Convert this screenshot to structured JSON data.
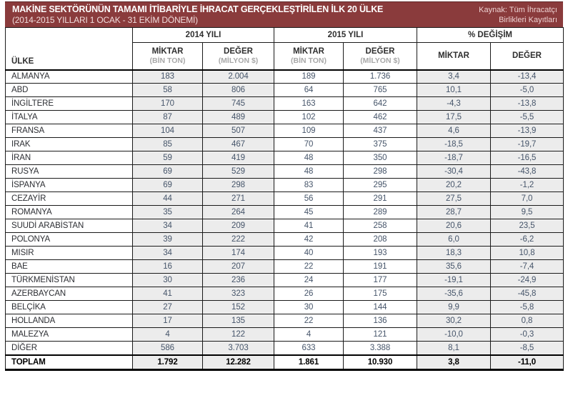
{
  "title_bar": {
    "title": "MAKİNE SEKTÖRÜNÜN TAMAMI İTİBARİYLE İHRACAT GERÇEKLEŞTİRİLEN İLK 20 ÜLKE",
    "subtitle": "(2014-2015 YILLARI 1 OCAK - 31 EKİM DÖNEMİ)",
    "source_line1": "Kaynak: Tüm İhracatçı",
    "source_line2": "Birlikleri Kayıtları",
    "bg_color": "#8a3b3c",
    "text_color": "#ffffff"
  },
  "table": {
    "country_header": "ÜLKE",
    "col_groups": [
      "2014 YILI",
      "2015 YILI",
      "% DEĞİŞİM"
    ],
    "sub_headers": [
      {
        "label": "MİKTAR",
        "unit": "(BİN TON)"
      },
      {
        "label": "DEĞER",
        "unit": "(MİLYON $)"
      },
      {
        "label": "MİKTAR",
        "unit": "(BİN TON)"
      },
      {
        "label": "DEĞER",
        "unit": "(MİLYON $)"
      },
      {
        "label": "MİKTAR",
        "unit": ""
      },
      {
        "label": "DEĞER",
        "unit": ""
      }
    ],
    "shade_color": "#ececec",
    "rows": [
      {
        "country": "ALMANYA",
        "cells": [
          "183",
          "2.004",
          "189",
          "1.736",
          "3,4",
          "-13,4"
        ]
      },
      {
        "country": "ABD",
        "cells": [
          "58",
          "806",
          "64",
          "765",
          "10,1",
          "-5,0"
        ]
      },
      {
        "country": "İNGİLTERE",
        "cells": [
          "170",
          "745",
          "163",
          "642",
          "-4,3",
          "-13,8"
        ]
      },
      {
        "country": "İTALYA",
        "cells": [
          "87",
          "489",
          "102",
          "462",
          "17,5",
          "-5,5"
        ]
      },
      {
        "country": "FRANSA",
        "cells": [
          "104",
          "507",
          "109",
          "437",
          "4,6",
          "-13,9"
        ]
      },
      {
        "country": "IRAK",
        "cells": [
          "85",
          "467",
          "70",
          "375",
          "-18,5",
          "-19,7"
        ]
      },
      {
        "country": "İRAN",
        "cells": [
          "59",
          "419",
          "48",
          "350",
          "-18,7",
          "-16,5"
        ]
      },
      {
        "country": "RUSYA",
        "cells": [
          "69",
          "529",
          "48",
          "298",
          "-30,4",
          "-43,8"
        ]
      },
      {
        "country": "İSPANYA",
        "cells": [
          "69",
          "298",
          "83",
          "295",
          "20,2",
          "-1,2"
        ]
      },
      {
        "country": "CEZAYİR",
        "cells": [
          "44",
          "271",
          "56",
          "291",
          "27,5",
          "7,0"
        ]
      },
      {
        "country": "ROMANYA",
        "cells": [
          "35",
          "264",
          "45",
          "289",
          "28,7",
          "9,5"
        ]
      },
      {
        "country": "SUUDİ ARABİSTAN",
        "cells": [
          "34",
          "209",
          "41",
          "258",
          "20,6",
          "23,5"
        ]
      },
      {
        "country": "POLONYA",
        "cells": [
          "39",
          "222",
          "42",
          "208",
          "6,0",
          "-6,2"
        ]
      },
      {
        "country": "MISIR",
        "cells": [
          "34",
          "174",
          "40",
          "193",
          "18,3",
          "10,8"
        ]
      },
      {
        "country": "BAE",
        "cells": [
          "16",
          "207",
          "22",
          "191",
          "35,6",
          "-7,4"
        ]
      },
      {
        "country": "TÜRKMENİSTAN",
        "cells": [
          "30",
          "236",
          "24",
          "177",
          "-19,1",
          "-24,9"
        ]
      },
      {
        "country": "AZERBAYCAN",
        "cells": [
          "41",
          "323",
          "26",
          "175",
          "-35,6",
          "-45,8"
        ]
      },
      {
        "country": "BELÇİKA",
        "cells": [
          "27",
          "152",
          "30",
          "144",
          "9,9",
          "-5,8"
        ]
      },
      {
        "country": "HOLLANDA",
        "cells": [
          "17",
          "135",
          "22",
          "136",
          "30,2",
          "0,8"
        ]
      },
      {
        "country": "MALEZYA",
        "cells": [
          "4",
          "122",
          "4",
          "121",
          "-10,0",
          "-0,3"
        ]
      },
      {
        "country": "DİĞER",
        "cells": [
          "586",
          "3.703",
          "633",
          "3.388",
          "8,1",
          "-8,5"
        ]
      },
      {
        "country": "TOPLAM",
        "cells": [
          "1.792",
          "12.282",
          "1.861",
          "10.930",
          "3,8",
          "-11,0"
        ],
        "total": true
      }
    ]
  },
  "chart_data": {
    "type": "table",
    "title": "MAKİNE SEKTÖRÜNÜN TAMAMI İTİBARİYLE İHRACAT GERÇEKLEŞTİRİLEN İLK 20 ÜLKE (2014-2015 YILLARI 1 OCAK - 31 EKİM DÖNEMİ)",
    "source": "Kaynak: Tüm İhracatçı Birlikleri Kayıtları",
    "columns": [
      "ÜLKE",
      "2014 YILI MİKTAR (BİN TON)",
      "2014 YILI DEĞER (MİLYON $)",
      "2015 YILI MİKTAR (BİN TON)",
      "2015 YILI DEĞER (MİLYON $)",
      "% DEĞİŞİM MİKTAR",
      "% DEĞİŞİM DEĞER"
    ],
    "rows": [
      [
        "ALMANYA",
        183,
        2004,
        189,
        1736,
        3.4,
        -13.4
      ],
      [
        "ABD",
        58,
        806,
        64,
        765,
        10.1,
        -5.0
      ],
      [
        "İNGİLTERE",
        170,
        745,
        163,
        642,
        -4.3,
        -13.8
      ],
      [
        "İTALYA",
        87,
        489,
        102,
        462,
        17.5,
        -5.5
      ],
      [
        "FRANSA",
        104,
        507,
        109,
        437,
        4.6,
        -13.9
      ],
      [
        "IRAK",
        85,
        467,
        70,
        375,
        -18.5,
        -19.7
      ],
      [
        "İRAN",
        59,
        419,
        48,
        350,
        -18.7,
        -16.5
      ],
      [
        "RUSYA",
        69,
        529,
        48,
        298,
        -30.4,
        -43.8
      ],
      [
        "İSPANYA",
        69,
        298,
        83,
        295,
        20.2,
        -1.2
      ],
      [
        "CEZAYİR",
        44,
        271,
        56,
        291,
        27.5,
        7.0
      ],
      [
        "ROMANYA",
        35,
        264,
        45,
        289,
        28.7,
        9.5
      ],
      [
        "SUUDİ ARABİSTAN",
        34,
        209,
        41,
        258,
        20.6,
        23.5
      ],
      [
        "POLONYA",
        39,
        222,
        42,
        208,
        6.0,
        -6.2
      ],
      [
        "MISIR",
        34,
        174,
        40,
        193,
        18.3,
        10.8
      ],
      [
        "BAE",
        16,
        207,
        22,
        191,
        35.6,
        -7.4
      ],
      [
        "TÜRKMENİSTAN",
        30,
        236,
        24,
        177,
        -19.1,
        -24.9
      ],
      [
        "AZERBAYCAN",
        41,
        323,
        26,
        175,
        -35.6,
        -45.8
      ],
      [
        "BELÇİKA",
        27,
        152,
        30,
        144,
        9.9,
        -5.8
      ],
      [
        "HOLLANDA",
        17,
        135,
        22,
        136,
        30.2,
        0.8
      ],
      [
        "MALEZYA",
        4,
        122,
        4,
        121,
        -10.0,
        -0.3
      ],
      [
        "DİĞER",
        586,
        3703,
        633,
        3388,
        8.1,
        -8.5
      ],
      [
        "TOPLAM",
        1792,
        12282,
        1861,
        10930,
        3.8,
        -11.0
      ]
    ]
  }
}
